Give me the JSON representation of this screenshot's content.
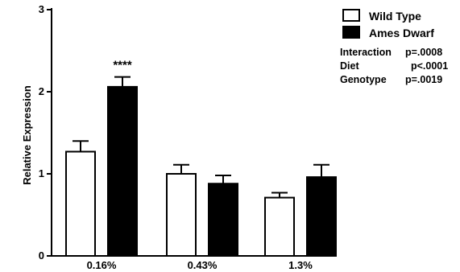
{
  "chart_data": {
    "type": "bar",
    "title": "",
    "xlabel": "",
    "ylabel": "Relative Expression",
    "ylim": [
      0,
      3
    ],
    "yticks": [
      "0",
      "1",
      "2",
      "3"
    ],
    "categories": [
      "0.16%",
      "0.43%",
      "1.3%"
    ],
    "series": [
      {
        "name": "Wild Type",
        "values": [
          1.27,
          1.0,
          0.71
        ],
        "errors": [
          0.13,
          0.11,
          0.06
        ],
        "color": "#ffffff"
      },
      {
        "name": "Ames Dwarf",
        "values": [
          2.06,
          0.88,
          0.96
        ],
        "errors": [
          0.12,
          0.1,
          0.15
        ],
        "color": "#000000"
      }
    ],
    "significance": {
      "category": "0.16%",
      "series": "Ames Dwarf",
      "label": "****"
    },
    "legend_position": "top-right",
    "stats": [
      {
        "label": "Interaction",
        "value": "p=.0008"
      },
      {
        "label": "Diet",
        "value": "p<.0001"
      },
      {
        "label": "Genotype",
        "value": "p=.0019"
      }
    ]
  }
}
